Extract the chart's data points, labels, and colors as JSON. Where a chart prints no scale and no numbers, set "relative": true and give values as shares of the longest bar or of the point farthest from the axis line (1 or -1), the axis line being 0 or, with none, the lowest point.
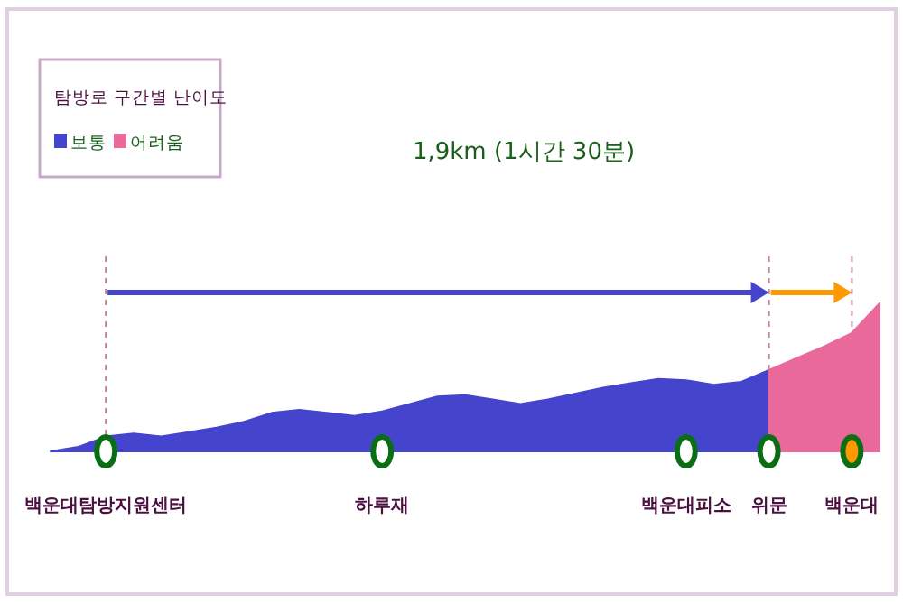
{
  "chart_data": {
    "type": "area",
    "relative": true,
    "title": "1,9km (1시간 30분)",
    "legend_title": "탐방로 구간별 난이도",
    "legend": "top left",
    "categories": [
      null,
      null,
      "백운대탐방지원센터",
      null,
      null,
      null,
      null,
      null,
      null,
      null,
      null,
      null,
      "하루재",
      null,
      null,
      null,
      null,
      null,
      null,
      null,
      null,
      null,
      null,
      "백운대피소",
      null,
      null,
      "위문",
      null,
      null,
      "백운대",
      null
    ],
    "series": [
      {
        "name": "보통",
        "color": "#4444cc",
        "values": [
          0,
          0.03,
          0.1,
          0.12,
          0.1,
          0.13,
          0.16,
          0.2,
          0.26,
          0.28,
          0.26,
          0.24,
          0.27,
          0.32,
          0.37,
          0.38,
          0.35,
          0.32,
          0.35,
          0.39,
          0.43,
          0.46,
          0.49,
          0.48,
          0.45,
          0.47,
          0.55,
          null,
          null,
          null,
          null
        ]
      },
      {
        "name": "어려움",
        "color": "#e8699a",
        "values": [
          null,
          null,
          null,
          null,
          null,
          null,
          null,
          null,
          null,
          null,
          null,
          null,
          null,
          null,
          null,
          null,
          null,
          null,
          null,
          null,
          null,
          null,
          null,
          null,
          null,
          null,
          0.55,
          0.63,
          0.71,
          0.8,
          1
        ]
      },
      {
        "type": "scatter",
        "values": [
          null,
          null,
          0,
          null,
          null,
          null,
          null,
          null,
          null,
          null,
          null,
          null,
          0,
          null,
          null,
          null,
          null,
          null,
          null,
          null,
          null,
          null,
          null,
          0,
          null,
          null,
          0,
          null,
          null,
          0,
          null
        ],
        "colors": [
          null,
          null,
          "#ffffff",
          null,
          null,
          null,
          null,
          null,
          null,
          null,
          null,
          null,
          "#ffffff",
          null,
          null,
          null,
          null,
          null,
          null,
          null,
          null,
          null,
          null,
          "#ffffff",
          null,
          null,
          "#ffffff",
          null,
          null,
          "#ff9900",
          null
        ]
      }
    ],
    "ref_lines": [
      {
        "axis": "x",
        "value": "백운대탐방지원센터",
        "color": "#c080a0",
        "line_style": "dashed"
      },
      {
        "axis": "x",
        "value": "위문",
        "color": "#c080a0",
        "line_style": "dashed"
      },
      {
        "axis": "x",
        "value": "백운대",
        "color": "#c080a0",
        "line_style": "dashed"
      }
    ]
  }
}
